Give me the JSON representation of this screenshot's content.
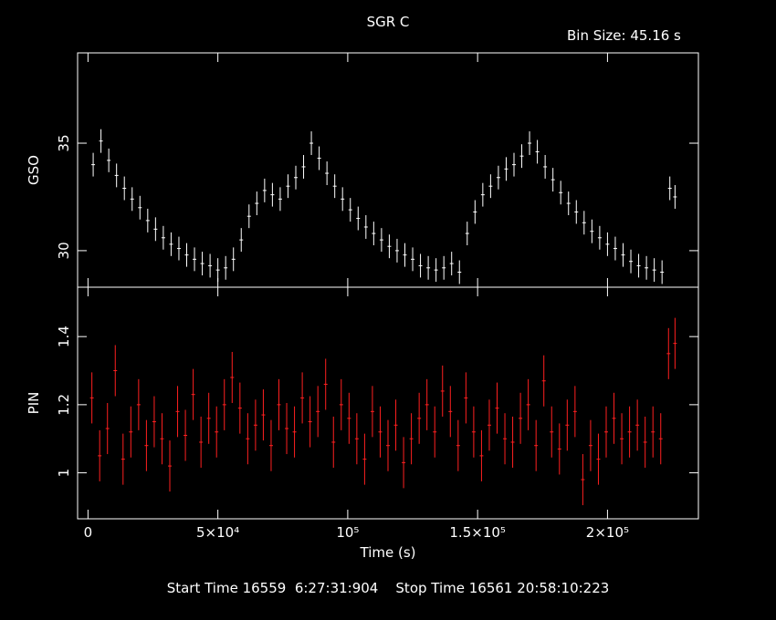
{
  "title": "SGR C",
  "bin_size_label": "Bin Size: 45.16 s",
  "footer": "Start Time 16559  6:27:31:904    Stop Time 16561 20:58:10:223",
  "colors": {
    "background": "#000000",
    "axes": "#ffffff",
    "gso": "#ffffff",
    "pin": "#ff2020"
  },
  "chart_data": [
    {
      "type": "scatter",
      "ylabel": "GSO",
      "ylim": [
        28.3,
        39.2
      ],
      "yticks": [
        30,
        35
      ],
      "xlim": [
        -4000,
        235000
      ],
      "error_bars": true,
      "series": [
        {
          "x": [
            2000,
            5000,
            8000,
            11000,
            14000,
            17000,
            20000,
            23000,
            26000,
            29000,
            32000,
            35000,
            38000,
            41000,
            44000,
            47000,
            50000,
            53000,
            56000,
            59000,
            62000,
            65000,
            68000,
            71000,
            74000,
            77000,
            80000,
            83000,
            86000,
            89000,
            92000,
            95000,
            98000,
            101000,
            104000,
            107000,
            110000,
            113000,
            116000,
            119000,
            122000,
            125000,
            128000,
            131000,
            134000,
            137000,
            140000,
            143000,
            146000,
            149000,
            152000,
            155000,
            158000,
            161000,
            164000,
            167000,
            170000,
            173000,
            176000,
            179000,
            182000,
            185000,
            188000,
            191000,
            194000,
            197000,
            200000,
            203000,
            206000,
            209000,
            212000,
            215000,
            218000,
            221000,
            224000,
            226000
          ],
          "y": [
            34.0,
            35.1,
            34.2,
            33.5,
            32.9,
            32.4,
            32.0,
            31.4,
            31.0,
            30.6,
            30.3,
            30.1,
            29.8,
            29.6,
            29.4,
            29.3,
            29.1,
            29.2,
            29.6,
            30.5,
            31.6,
            32.2,
            32.8,
            32.6,
            32.4,
            33.0,
            33.4,
            33.9,
            35.0,
            34.3,
            33.6,
            33.0,
            32.4,
            31.9,
            31.5,
            31.1,
            30.8,
            30.5,
            30.2,
            30.0,
            29.8,
            29.6,
            29.3,
            29.2,
            29.1,
            29.2,
            29.4,
            29.0,
            30.8,
            31.8,
            32.6,
            33.0,
            33.4,
            33.8,
            34.0,
            34.4,
            35.0,
            34.6,
            33.9,
            33.3,
            32.7,
            32.2,
            31.8,
            31.3,
            30.9,
            30.6,
            30.3,
            30.1,
            29.8,
            29.5,
            29.3,
            29.2,
            29.1,
            29.0,
            32.9,
            32.5
          ]
        }
      ]
    },
    {
      "type": "scatter",
      "ylabel": "PIN",
      "xlabel": "Time (s)",
      "ylim": [
        0.865,
        1.545
      ],
      "yticks": [
        1,
        1.2,
        1.4
      ],
      "xlim": [
        -4000,
        235000
      ],
      "xticks": [
        0,
        50000,
        100000,
        150000,
        200000
      ],
      "xtick_labels": [
        "0",
        "5×10⁴",
        "10⁵",
        "1.5×10⁵",
        "2×10⁵"
      ],
      "error_bars": true,
      "series": [
        {
          "x": [
            1500,
            4500,
            7500,
            10500,
            13500,
            16500,
            19500,
            22500,
            25500,
            28500,
            31500,
            34500,
            37500,
            40500,
            43500,
            46500,
            49500,
            52500,
            55500,
            58500,
            61500,
            64500,
            67500,
            70500,
            73500,
            76500,
            79500,
            82500,
            85500,
            88500,
            91500,
            94500,
            97500,
            100500,
            103500,
            106500,
            109500,
            112500,
            115500,
            118500,
            121500,
            124500,
            127500,
            130500,
            133500,
            136500,
            139500,
            142500,
            145500,
            148500,
            151500,
            154500,
            157500,
            160500,
            163500,
            166500,
            169500,
            172500,
            175500,
            178500,
            181500,
            184500,
            187500,
            190500,
            193500,
            196500,
            199500,
            202500,
            205500,
            208500,
            211500,
            214500,
            217500,
            220500,
            223500,
            226000
          ],
          "y": [
            1.22,
            1.05,
            1.13,
            1.3,
            1.04,
            1.12,
            1.2,
            1.08,
            1.15,
            1.1,
            1.02,
            1.18,
            1.11,
            1.23,
            1.09,
            1.16,
            1.12,
            1.2,
            1.28,
            1.19,
            1.1,
            1.14,
            1.17,
            1.08,
            1.2,
            1.13,
            1.12,
            1.22,
            1.15,
            1.18,
            1.26,
            1.09,
            1.2,
            1.16,
            1.1,
            1.04,
            1.18,
            1.12,
            1.08,
            1.14,
            1.03,
            1.1,
            1.16,
            1.2,
            1.12,
            1.24,
            1.18,
            1.08,
            1.22,
            1.12,
            1.05,
            1.14,
            1.19,
            1.1,
            1.09,
            1.16,
            1.2,
            1.08,
            1.27,
            1.12,
            1.07,
            1.14,
            1.18,
            0.98,
            1.08,
            1.04,
            1.12,
            1.16,
            1.1,
            1.12,
            1.14,
            1.09,
            1.12,
            1.1,
            1.35,
            1.38
          ]
        }
      ]
    }
  ]
}
